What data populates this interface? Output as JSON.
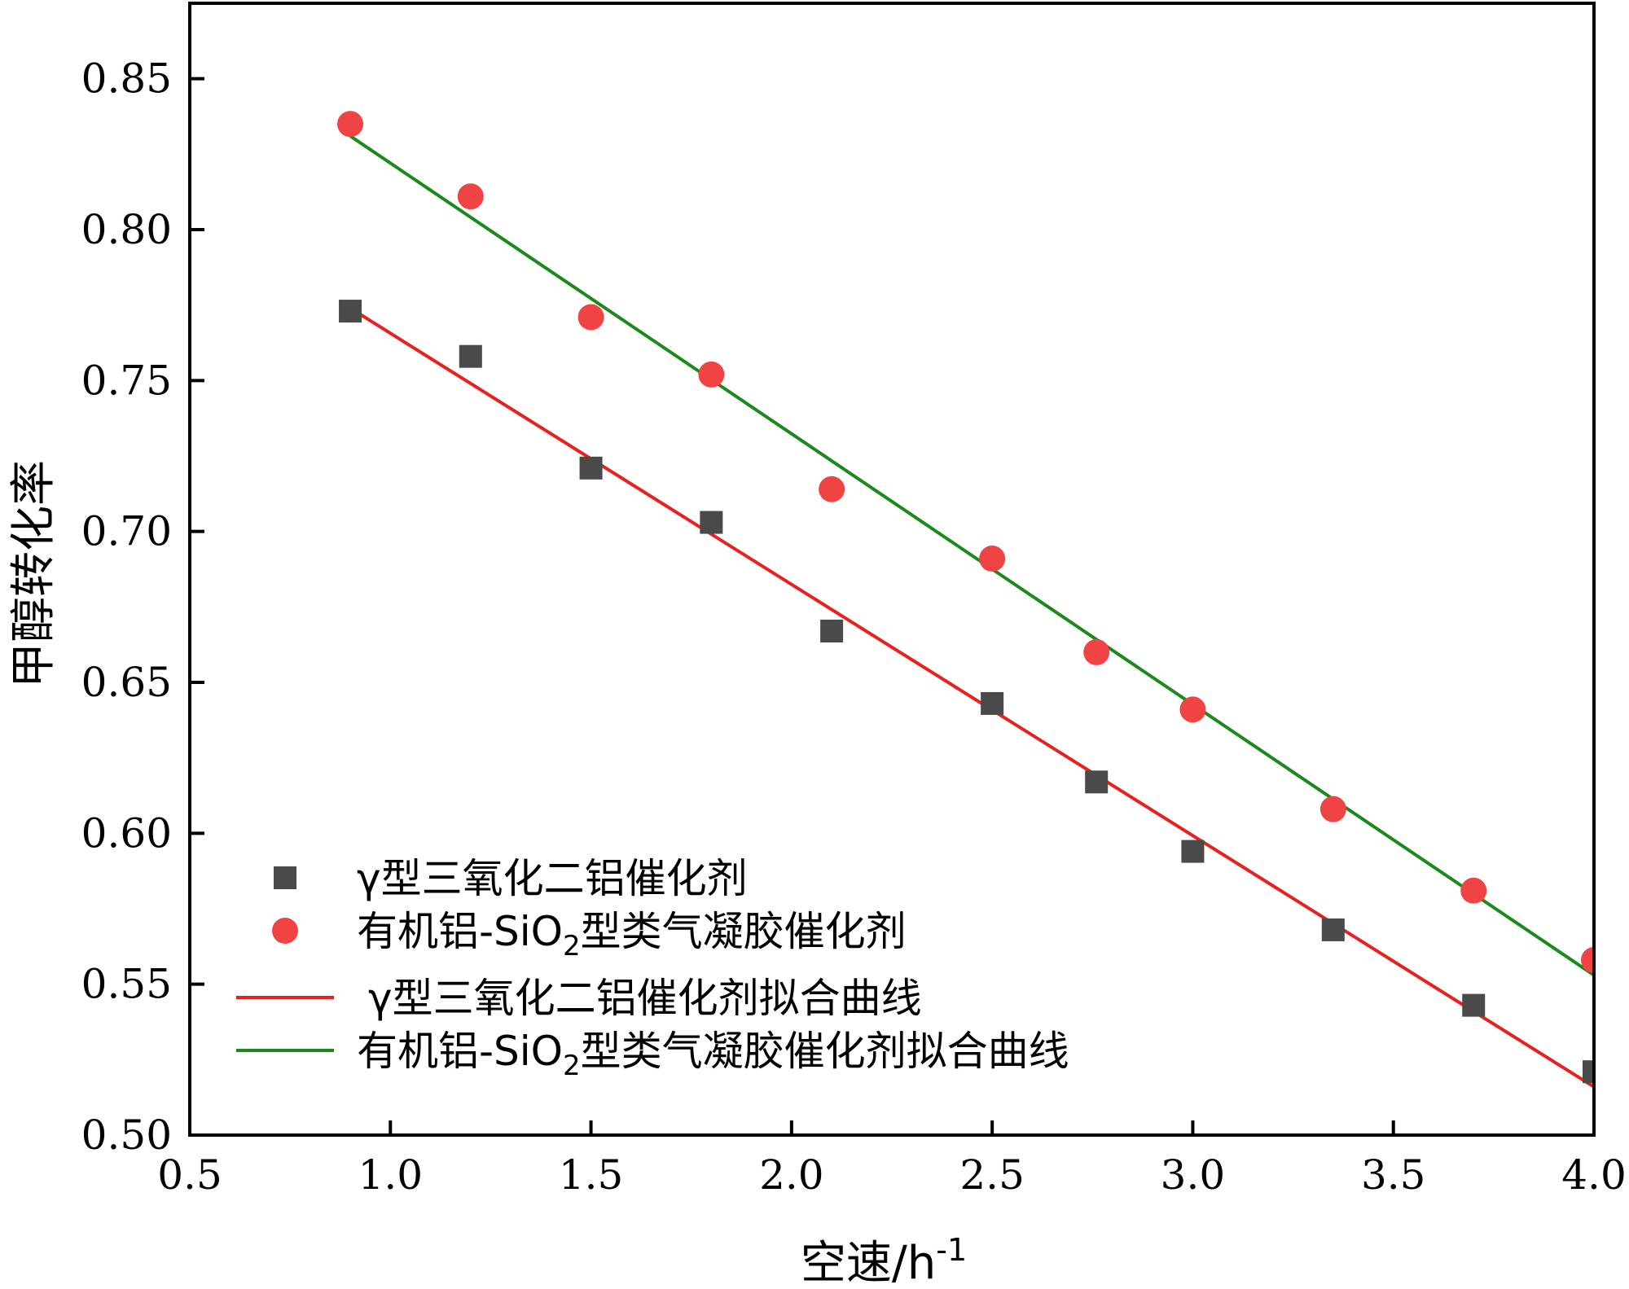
{
  "chart_data": {
    "type": "scatter",
    "title": "",
    "xlabel": "空速/h",
    "xlabel_superscript": "-1",
    "ylabel": "甲醇转化率",
    "xlim": [
      0.5,
      4.0
    ],
    "ylim": [
      0.5,
      0.875
    ],
    "xticks": [
      0.5,
      1.0,
      1.5,
      2.0,
      2.5,
      3.0,
      3.5,
      4.0
    ],
    "xtick_labels": [
      "0.5",
      "1.0",
      "1.5",
      "2.0",
      "2.5",
      "3.0",
      "3.5",
      "4.0"
    ],
    "yticks": [
      0.5,
      0.55,
      0.6,
      0.65,
      0.7,
      0.75,
      0.8,
      0.85
    ],
    "ytick_labels": [
      "0.50",
      "0.55",
      "0.60",
      "0.65",
      "0.70",
      "0.75",
      "0.80",
      "0.85"
    ],
    "grid": false,
    "legend_position": "bottom-left",
    "series": [
      {
        "name": "γ型三氧化二铝催化剂",
        "kind": "scatter",
        "marker": "square",
        "color": "#4a4a4a",
        "x": [
          0.9,
          1.2,
          1.5,
          1.8,
          2.1,
          2.5,
          2.76,
          3.0,
          3.35,
          3.7,
          4.0
        ],
        "y": [
          0.773,
          0.758,
          0.721,
          0.703,
          0.667,
          0.643,
          0.617,
          0.594,
          0.568,
          0.543,
          0.521
        ]
      },
      {
        "name": "有机铝-SiO",
        "name_subscript": "2",
        "name_suffix": "型类气凝胶催化剂",
        "kind": "scatter",
        "marker": "circle",
        "color": "#f04444",
        "x": [
          0.9,
          1.2,
          1.5,
          1.8,
          2.1,
          2.5,
          2.76,
          3.0,
          3.35,
          3.7,
          4.0
        ],
        "y": [
          0.835,
          0.811,
          0.771,
          0.752,
          0.714,
          0.691,
          0.66,
          0.641,
          0.608,
          0.581,
          0.558
        ]
      },
      {
        "name": "γ型三氧化二铝催化剂拟合曲线",
        "kind": "line",
        "color": "#e8211f",
        "x": [
          0.9,
          4.0
        ],
        "y": [
          0.774,
          0.516
        ]
      },
      {
        "name": "有机铝-SiO",
        "name_subscript": "2",
        "name_suffix": "型类气凝胶催化剂拟合曲线",
        "kind": "line",
        "color": "#1a8a1a",
        "x": [
          0.9,
          4.0
        ],
        "y": [
          0.831,
          0.553
        ]
      }
    ]
  }
}
